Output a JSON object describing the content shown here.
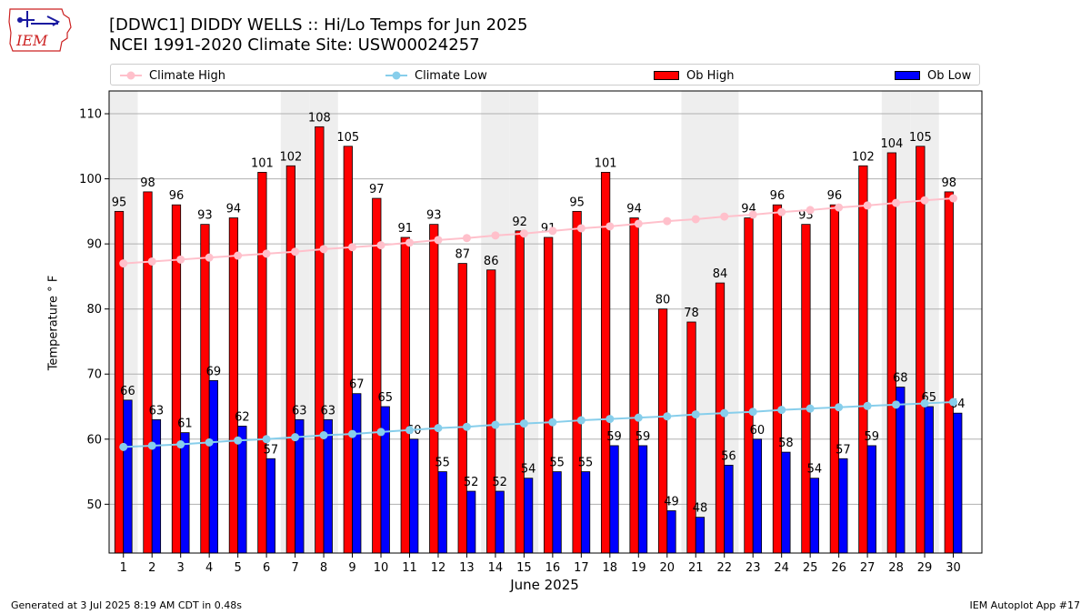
{
  "header": {
    "title_line1": "[DDWC1] DIDDY WELLS :: Hi/Lo Temps for Jun 2025",
    "title_line2": "NCEI 1991-2020 Climate Site: USW00024257"
  },
  "logo": {
    "text": "IEM"
  },
  "footer": {
    "generated": "Generated at 3 Jul 2025 8:19 AM CDT in 0.48s",
    "app": "IEM Autoplot App #17"
  },
  "colors": {
    "ob_high": "#ff0000",
    "ob_low": "#0000ff",
    "climate_high": "#ffc0cb",
    "climate_low": "#87ceeb",
    "weekend_band": "#eeeeee",
    "grid": "#b0b0b0"
  },
  "chart_data": {
    "type": "bar",
    "title": "[DDWC1] DIDDY WELLS :: Hi/Lo Temps for Jun 2025",
    "xlabel": "June 2025",
    "ylabel": "Temperature ° F",
    "ylim": [
      42.5,
      113.5
    ],
    "yticks": [
      50,
      60,
      70,
      80,
      90,
      100,
      110
    ],
    "grid": true,
    "legend_position": "top",
    "categories": [
      "1",
      "2",
      "3",
      "4",
      "5",
      "6",
      "7",
      "8",
      "9",
      "10",
      "11",
      "12",
      "13",
      "14",
      "15",
      "16",
      "17",
      "18",
      "19",
      "20",
      "21",
      "22",
      "23",
      "24",
      "25",
      "26",
      "27",
      "28",
      "29",
      "30"
    ],
    "shaded_days": [
      1,
      7,
      8,
      14,
      15,
      21,
      22,
      28,
      29
    ],
    "series": [
      {
        "name": "Ob High",
        "kind": "bar",
        "values": [
          95,
          98,
          96,
          93,
          94,
          101,
          102,
          108,
          105,
          97,
          91,
          93,
          87,
          86,
          92,
          91,
          95,
          101,
          94,
          80,
          78,
          84,
          94,
          96,
          93,
          96,
          102,
          104,
          105,
          98
        ]
      },
      {
        "name": "Ob Low",
        "kind": "bar",
        "values": [
          66,
          63,
          61,
          69,
          62,
          57,
          63,
          63,
          67,
          65,
          60,
          55,
          52,
          52,
          54,
          55,
          55,
          59,
          59,
          49,
          48,
          56,
          60,
          58,
          54,
          57,
          59,
          68,
          65,
          64
        ]
      },
      {
        "name": "Climate High",
        "kind": "line",
        "values": [
          87.0,
          87.3,
          87.6,
          87.9,
          88.2,
          88.5,
          88.8,
          89.2,
          89.5,
          89.8,
          90.2,
          90.6,
          90.9,
          91.3,
          91.6,
          92.0,
          92.4,
          92.7,
          93.1,
          93.5,
          93.8,
          94.2,
          94.5,
          94.9,
          95.2,
          95.6,
          95.9,
          96.3,
          96.7,
          97.0
        ]
      },
      {
        "name": "Climate Low",
        "kind": "line",
        "values": [
          58.8,
          59.0,
          59.2,
          59.5,
          59.8,
          60.0,
          60.3,
          60.6,
          60.8,
          61.1,
          61.4,
          61.7,
          61.9,
          62.2,
          62.4,
          62.6,
          62.9,
          63.1,
          63.3,
          63.5,
          63.8,
          64.0,
          64.2,
          64.5,
          64.7,
          64.9,
          65.1,
          65.3,
          65.5,
          65.7
        ]
      }
    ],
    "legend": [
      "Climate High",
      "Climate Low",
      "Ob High",
      "Ob Low"
    ]
  }
}
